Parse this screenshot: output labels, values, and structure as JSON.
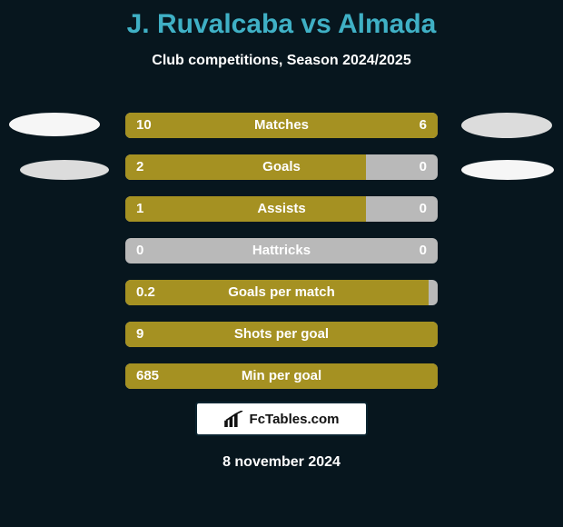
{
  "colors": {
    "background": "#07161e",
    "title": "#3fb0c5",
    "text": "#ffffff",
    "bar_track": "#b9b9b9",
    "bar_fill": "#a59122",
    "avatar_light": "#f6f6f6",
    "avatar_dark": "#dcdcdc",
    "badge_bg": "#ffffff",
    "badge_border": "#0b2430",
    "badge_text": "#111111"
  },
  "title": {
    "player1": "J. Ruvalcaba",
    "vs": "vs",
    "player2": "Almada"
  },
  "subtitle": "Club competitions, Season 2024/2025",
  "rows": [
    {
      "label": "Matches",
      "left": "10",
      "right": "6",
      "left_pct": 62.5,
      "right_pct": 37.5
    },
    {
      "label": "Goals",
      "left": "2",
      "right": "0",
      "left_pct": 77,
      "right_pct": 0
    },
    {
      "label": "Assists",
      "left": "1",
      "right": "0",
      "left_pct": 77,
      "right_pct": 0
    },
    {
      "label": "Hattricks",
      "left": "0",
      "right": "0",
      "left_pct": 0,
      "right_pct": 0
    },
    {
      "label": "Goals per match",
      "left": "0.2",
      "right": "",
      "left_pct": 97,
      "right_pct": 0
    },
    {
      "label": "Shots per goal",
      "left": "9",
      "right": "",
      "left_pct": 100,
      "right_pct": 0
    },
    {
      "label": "Min per goal",
      "left": "685",
      "right": "",
      "left_pct": 100,
      "right_pct": 0
    }
  ],
  "badge": {
    "text": "FcTables.com"
  },
  "date": "8 november 2024",
  "label_fontsize": 15,
  "value_fontsize": 15,
  "title_fontsize": 30,
  "subtitle_fontsize": 16
}
